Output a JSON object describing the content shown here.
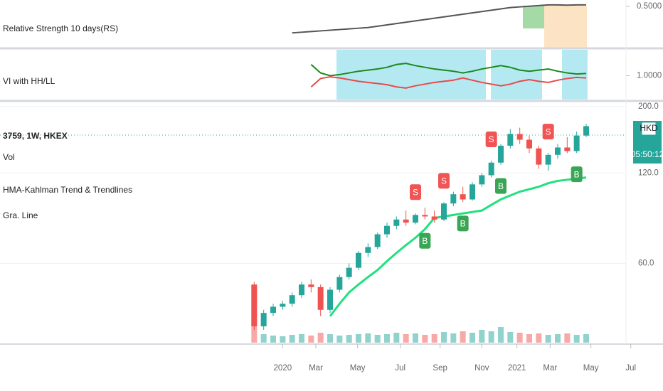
{
  "chart_data": {
    "type": "candlestick",
    "symbol": "3759, 1W, HKEX",
    "legend": [
      "Vol",
      "HMA-Kahlman Trend & Trendlines",
      "Gra. Line"
    ],
    "currency": "HKD",
    "countdown": "05:50:12",
    "log_scale": true,
    "ylim": [
      33,
      211
    ],
    "yticks": [
      {
        "value": 200,
        "label": "200.0"
      },
      {
        "value": 120,
        "label": "120.0"
      },
      {
        "value": 60,
        "label": "60.0"
      }
    ],
    "xlim": [
      -26.8,
      39.2
    ],
    "xticks": [
      {
        "value": 3,
        "label": "2020"
      },
      {
        "value": 6.5,
        "label": "Mar"
      },
      {
        "value": 10.9,
        "label": "May"
      },
      {
        "value": 15.4,
        "label": "Jul"
      },
      {
        "value": 19.6,
        "label": "Sep"
      },
      {
        "value": 24,
        "label": "Nov"
      },
      {
        "value": 27.7,
        "label": "2021"
      },
      {
        "value": 31.2,
        "label": "Mar"
      },
      {
        "value": 35.5,
        "label": "May"
      },
      {
        "value": 39.7,
        "label": "Jul"
      }
    ],
    "up_color": "#26a69a",
    "down_color": "#ef5350",
    "candles": [
      {
        "open": 51,
        "high": 52,
        "low": 36,
        "close": 37
      },
      {
        "open": 37,
        "high": 42,
        "low": 36,
        "close": 41
      },
      {
        "open": 41,
        "high": 44,
        "low": 40,
        "close": 43
      },
      {
        "open": 43,
        "high": 45,
        "low": 42,
        "close": 44
      },
      {
        "open": 44,
        "high": 48,
        "low": 43,
        "close": 47
      },
      {
        "open": 47,
        "high": 52,
        "low": 46,
        "close": 51
      },
      {
        "open": 51,
        "high": 53,
        "low": 48,
        "close": 50
      },
      {
        "open": 50,
        "high": 51,
        "low": 40,
        "close": 42
      },
      {
        "open": 42,
        "high": 50,
        "low": 41,
        "close": 49
      },
      {
        "open": 49,
        "high": 55,
        "low": 48,
        "close": 54
      },
      {
        "open": 54,
        "high": 60,
        "low": 53,
        "close": 58
      },
      {
        "open": 58,
        "high": 66,
        "low": 57,
        "close": 65
      },
      {
        "open": 65,
        "high": 70,
        "low": 63,
        "close": 68
      },
      {
        "open": 68,
        "high": 76,
        "low": 67,
        "close": 75
      },
      {
        "open": 75,
        "high": 82,
        "low": 73,
        "close": 80
      },
      {
        "open": 80,
        "high": 86,
        "low": 78,
        "close": 84
      },
      {
        "open": 84,
        "high": 90,
        "low": 80,
        "close": 82
      },
      {
        "open": 82,
        "high": 88,
        "low": 81,
        "close": 87
      },
      {
        "open": 87,
        "high": 92,
        "low": 84,
        "close": 86
      },
      {
        "open": 86,
        "high": 90,
        "low": 82,
        "close": 84
      },
      {
        "open": 84,
        "high": 96,
        "low": 83,
        "close": 95
      },
      {
        "open": 95,
        "high": 104,
        "low": 93,
        "close": 102
      },
      {
        "open": 102,
        "high": 108,
        "low": 96,
        "close": 98
      },
      {
        "open": 98,
        "high": 112,
        "low": 97,
        "close": 110
      },
      {
        "open": 110,
        "high": 120,
        "low": 108,
        "close": 118
      },
      {
        "open": 118,
        "high": 132,
        "low": 116,
        "close": 130
      },
      {
        "open": 130,
        "high": 150,
        "low": 128,
        "close": 148
      },
      {
        "open": 148,
        "high": 168,
        "low": 145,
        "close": 162
      },
      {
        "open": 162,
        "high": 170,
        "low": 150,
        "close": 155
      },
      {
        "open": 155,
        "high": 160,
        "low": 140,
        "close": 145
      },
      {
        "open": 145,
        "high": 148,
        "low": 124,
        "close": 128
      },
      {
        "open": 128,
        "high": 140,
        "low": 122,
        "close": 138
      },
      {
        "open": 138,
        "high": 150,
        "low": 134,
        "close": 146
      },
      {
        "open": 146,
        "high": 158,
        "low": 140,
        "close": 142
      },
      {
        "open": 142,
        "high": 165,
        "low": 140,
        "close": 160
      },
      {
        "open": 160,
        "high": 175,
        "low": 158,
        "close": 172
      }
    ],
    "volume": [
      80,
      12,
      10,
      9,
      11,
      12,
      10,
      14,
      12,
      10,
      11,
      12,
      13,
      11,
      12,
      14,
      12,
      13,
      11,
      12,
      15,
      13,
      16,
      14,
      18,
      16,
      22,
      15,
      14,
      12,
      13,
      11,
      12,
      13,
      11,
      12
    ],
    "trend": {
      "color": "#22e07f",
      "values": [
        null,
        null,
        null,
        null,
        null,
        null,
        null,
        null,
        40,
        44,
        48,
        51,
        54,
        57,
        61,
        65,
        69,
        73,
        78,
        85,
        86,
        87,
        88,
        89,
        90,
        94,
        98,
        101,
        104,
        106,
        108,
        111,
        113,
        114,
        115,
        116
      ]
    },
    "signals": [
      null,
      null,
      null,
      null,
      null,
      null,
      null,
      null,
      null,
      null,
      null,
      null,
      null,
      null,
      null,
      null,
      null,
      "S",
      "B",
      null,
      "S",
      null,
      "B",
      null,
      null,
      "S",
      "B",
      null,
      null,
      null,
      null,
      "S",
      null,
      null,
      "B",
      null
    ],
    "panes": [
      {
        "title": "Relative Strength 10 days(RS)",
        "ylim": [
          0.2,
          0.52
        ],
        "yticks": [
          {
            "value": 0.5,
            "label": "0.5000"
          }
        ],
        "series": [
          {
            "color": "#555555",
            "values": [
              null,
              null,
              null,
              null,
              0.3,
              0.305,
              0.31,
              0.315,
              0.32,
              0.325,
              0.33,
              0.335,
              0.34,
              0.35,
              0.36,
              0.37,
              0.38,
              0.39,
              0.4,
              0.41,
              0.42,
              0.43,
              0.44,
              0.45,
              0.46,
              0.47,
              0.48,
              0.49,
              0.495,
              0.5,
              0.505,
              0.51,
              0.51,
              0.508,
              0.51,
              0.51
            ]
          }
        ]
      },
      {
        "title": "VI with HH/LL",
        "ylim": [
          0.6,
          1.4
        ],
        "yticks": [
          {
            "value": 1,
            "label": "1.0000"
          }
        ],
        "series": [
          {
            "color": "#1a8a1a",
            "values": [
              null,
              null,
              null,
              null,
              null,
              null,
              1.2,
              1.05,
              1.0,
              1.02,
              1.05,
              1.08,
              1.1,
              1.12,
              1.15,
              1.2,
              1.22,
              1.18,
              1.15,
              1.12,
              1.1,
              1.08,
              1.05,
              1.08,
              1.12,
              1.15,
              1.18,
              1.15,
              1.1,
              1.08,
              1.1,
              1.12,
              1.08,
              1.05,
              1.03,
              1.04
            ]
          },
          {
            "color": "#e84a4a",
            "values": [
              null,
              null,
              null,
              null,
              null,
              null,
              0.8,
              0.95,
              0.98,
              0.96,
              0.93,
              0.9,
              0.88,
              0.86,
              0.84,
              0.8,
              0.78,
              0.82,
              0.85,
              0.88,
              0.9,
              0.92,
              0.96,
              0.92,
              0.88,
              0.85,
              0.82,
              0.85,
              0.9,
              0.93,
              0.9,
              0.88,
              0.92,
              0.95,
              0.97,
              0.96
            ]
          }
        ]
      }
    ]
  }
}
